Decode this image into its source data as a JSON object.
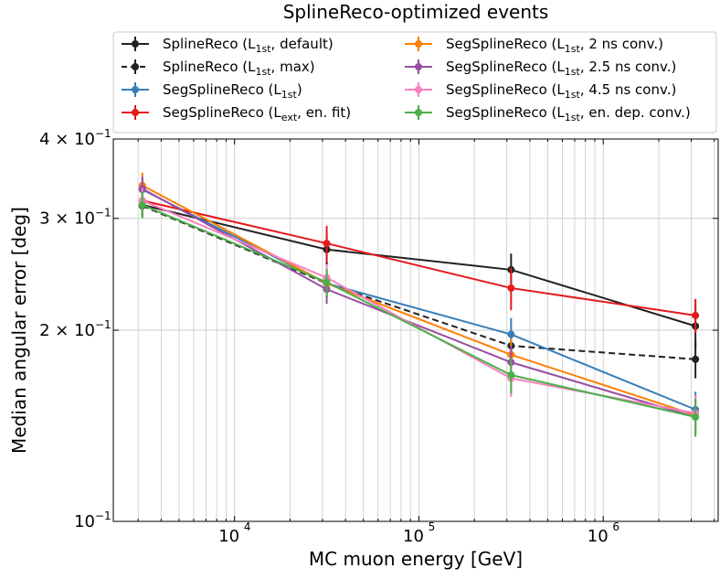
{
  "chart_data": {
    "type": "line",
    "title": "SplineReco-optimized events",
    "xlabel": "MC muon energy [GeV]",
    "ylabel": "Median angular error [deg]",
    "xscale": "log",
    "yscale": "log",
    "xlim": [
      2200,
      4200000
    ],
    "ylim": [
      0.1,
      0.4
    ],
    "grid": true,
    "legend_position": "top, above plot, two columns",
    "x": [
      3162,
      31623,
      316228,
      3162278
    ],
    "x_ticks": [
      {
        "value": 10000,
        "base": "10",
        "exp": "4"
      },
      {
        "value": 100000,
        "base": "10",
        "exp": "5"
      },
      {
        "value": 1000000,
        "base": "10",
        "exp": "6"
      }
    ],
    "y_ticks": [
      {
        "value": 0.1,
        "base": "10",
        "exp": "−1",
        "coef": ""
      },
      {
        "value": 0.2,
        "base": "10",
        "exp": "−1",
        "coef": "2 × "
      },
      {
        "value": 0.3,
        "base": "10",
        "exp": "−1",
        "coef": "3 × "
      },
      {
        "value": 0.4,
        "base": "10",
        "exp": "−1",
        "coef": "4 × "
      }
    ],
    "series": [
      {
        "name_pre": "SplineReco (L",
        "name_sub": "1st",
        "name_post": ", default)",
        "color": "#222222",
        "dashed": false,
        "values": [
          0.315,
          0.268,
          0.249,
          0.203
        ],
        "err": [
          0.012,
          0.015,
          0.015,
          0.016
        ]
      },
      {
        "name_pre": "SplineReco (L",
        "name_sub": "1st",
        "name_post": ", max)",
        "color": "#222222",
        "dashed": true,
        "values": [
          0.314,
          0.237,
          0.189,
          0.18
        ],
        "err": [
          0.012,
          0.012,
          0.01,
          0.012
        ]
      },
      {
        "name_pre": "SegSplineReco (L",
        "name_sub": "1st",
        "name_post": ")",
        "color": "#377eb8",
        "dashed": false,
        "values": [
          0.333,
          0.237,
          0.197,
          0.15
        ],
        "err": [
          0.015,
          0.012,
          0.012,
          0.01
        ]
      },
      {
        "name_pre": "SegSplineReco (L",
        "name_sub": "ext",
        "name_post": ", en. fit)",
        "color": "#e41a1c",
        "dashed": false,
        "values": [
          0.32,
          0.274,
          0.233,
          0.211
        ],
        "err": [
          0.016,
          0.018,
          0.018,
          0.013
        ]
      },
      {
        "name_pre": "SegSplineReco (L",
        "name_sub": "1st",
        "name_post": ", 2 ns conv.)",
        "color": "#ff7f00",
        "dashed": false,
        "values": [
          0.338,
          0.237,
          0.183,
          0.147
        ],
        "err": [
          0.016,
          0.012,
          0.011,
          0.01
        ]
      },
      {
        "name_pre": "SegSplineReco (L",
        "name_sub": "1st",
        "name_post": ", 2.5 ns conv.)",
        "color": "#984ea3",
        "dashed": false,
        "values": [
          0.334,
          0.232,
          0.178,
          0.146
        ],
        "err": [
          0.015,
          0.012,
          0.011,
          0.01
        ]
      },
      {
        "name_pre": "SegSplineReco (L",
        "name_sub": "1st",
        "name_post": ", 4.5 ns conv.)",
        "color": "#f781bf",
        "dashed": false,
        "values": [
          0.32,
          0.242,
          0.168,
          0.148
        ],
        "err": [
          0.015,
          0.012,
          0.011,
          0.01
        ]
      },
      {
        "name_pre": "SegSplineReco (L",
        "name_sub": "1st",
        "name_post": ", en. dep. conv.)",
        "color": "#4daf4a",
        "dashed": false,
        "values": [
          0.315,
          0.238,
          0.17,
          0.146
        ],
        "err": [
          0.015,
          0.012,
          0.011,
          0.01
        ]
      }
    ]
  }
}
